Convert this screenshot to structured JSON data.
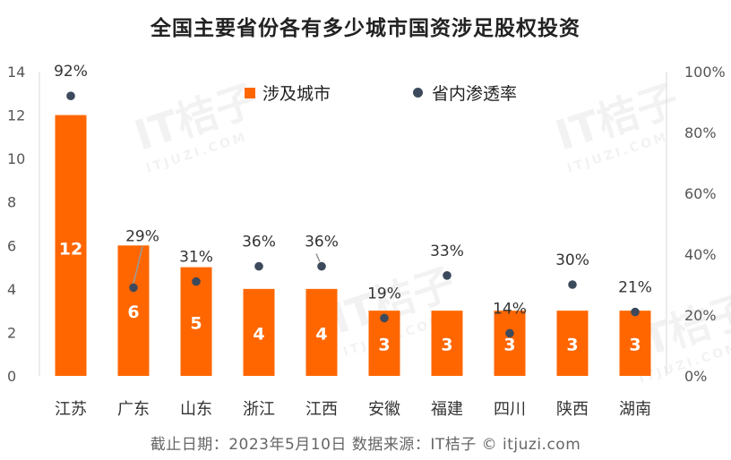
{
  "title": "全国主要省份各有多少城市国资涉足股权投资",
  "footnote": "截止日期：2023年5月10日   数据来源：IT桔子 © itjuzi.com",
  "watermark": {
    "brand": "IT桔子",
    "site": "ITJUZI.COM"
  },
  "colors": {
    "bar": "#ff6600",
    "dot": "#3c4a5c",
    "axis_text": "#555555",
    "bar_label": "#ffffff"
  },
  "chart_data": {
    "type": "bar",
    "categories": [
      "江苏",
      "广东",
      "山东",
      "浙江",
      "江西",
      "安徽",
      "福建",
      "四川",
      "陕西",
      "湖南"
    ],
    "series": [
      {
        "name": "涉及城市",
        "type": "bar",
        "axis": "left",
        "values": [
          12,
          6,
          5,
          4,
          4,
          3,
          3,
          3,
          3,
          3
        ],
        "labels": [
          "12",
          "6",
          "5",
          "4",
          "4",
          "3",
          "3",
          "3",
          "3",
          "3"
        ]
      },
      {
        "name": "省内渗透率",
        "type": "scatter",
        "axis": "right",
        "values": [
          92,
          29,
          31,
          36,
          36,
          19,
          33,
          14,
          30,
          21
        ],
        "labels": [
          "92%",
          "29%",
          "31%",
          "36%",
          "36%",
          "19%",
          "33%",
          "14%",
          "30%",
          "21%"
        ]
      }
    ],
    "y_left": {
      "min": 0,
      "max": 14,
      "ticks": [
        "0",
        "2",
        "4",
        "6",
        "8",
        "10",
        "12",
        "14"
      ]
    },
    "y_right": {
      "min": 0,
      "max": 100,
      "ticks": [
        "0%",
        "20%",
        "40%",
        "60%",
        "80%",
        "100%"
      ]
    },
    "grid": false,
    "legend_position": "top"
  }
}
